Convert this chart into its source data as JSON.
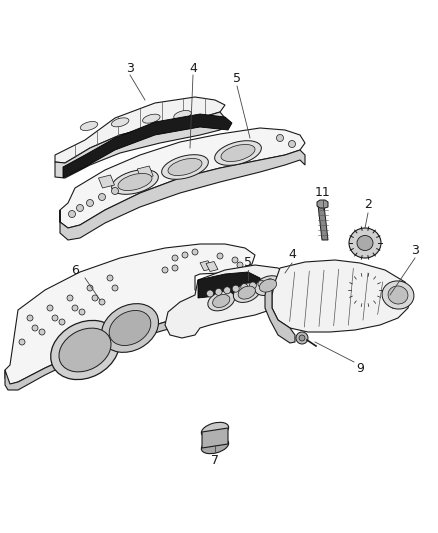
{
  "background_color": "#ffffff",
  "line_color": "#1a1a1a",
  "label_color": "#1a1a1a",
  "figsize": [
    4.38,
    5.33
  ],
  "dpi": 100,
  "lw": 0.8,
  "fill_color": "#ffffff",
  "shade_light": "#e8e8e8",
  "shade_dark": "#c0c0c0",
  "gasket_color": "#2a2a2a"
}
